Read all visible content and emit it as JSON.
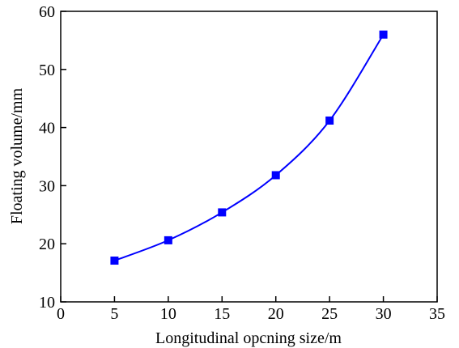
{
  "chart_data": {
    "type": "line",
    "title": "",
    "xlabel": "Longitudinal opcning size/m",
    "ylabel": "Floating volume/mm",
    "xlim": [
      0,
      35
    ],
    "ylim": [
      10,
      60
    ],
    "x_ticks": [
      0,
      5,
      10,
      15,
      20,
      25,
      30,
      35
    ],
    "y_ticks": [
      10,
      20,
      30,
      40,
      50,
      60
    ],
    "grid": false,
    "legend": "none",
    "series": [
      {
        "x": [
          5,
          10,
          15,
          20,
          25,
          30
        ],
        "values": [
          17.1,
          20.6,
          25.4,
          31.8,
          41.2,
          56.0
        ],
        "color": "#0000ff",
        "marker": "square",
        "smooth": true
      }
    ]
  }
}
